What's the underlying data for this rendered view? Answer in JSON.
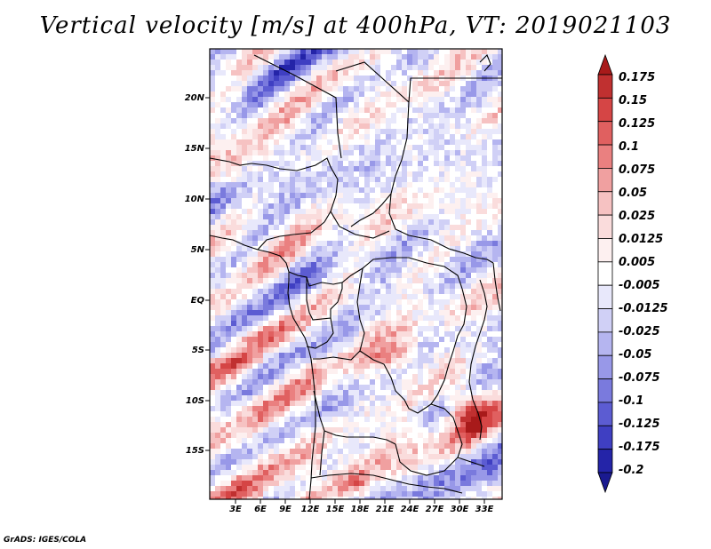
{
  "title": "Vertical velocity [m/s] at 400hPa, VT: 2019021103",
  "footer": "GrADS: IGES/COLA",
  "latitude_labels": [
    "20N",
    "15N",
    "10N",
    "5N",
    "EQ",
    "5S",
    "10S",
    "15S"
  ],
  "longitude_labels": [
    "3E",
    "6E",
    "9E",
    "12E",
    "15E",
    "18E",
    "21E",
    "24E",
    "27E",
    "30E",
    "33E"
  ],
  "colorbar": {
    "levels": [
      "0.175",
      "0.15",
      "0.125",
      "0.1",
      "0.075",
      "0.05",
      "0.025",
      "0.0125",
      "0.005",
      "-0.005",
      "-0.0125",
      "-0.025",
      "-0.05",
      "-0.075",
      "-0.1",
      "-0.125",
      "-0.175",
      "-0.2"
    ],
    "colors": [
      "#a81a1a",
      "#c03030",
      "#d54545",
      "#e06060",
      "#ea8080",
      "#f0a0a0",
      "#f6c2c2",
      "#fadcdc",
      "#fdf0f0",
      "#ffffff",
      "#e8e8fb",
      "#d0d0f6",
      "#b5b5f0",
      "#9898e8",
      "#7a7add",
      "#5c5cd2",
      "#3f3fc2",
      "#2424a8",
      "#1a1a90"
    ]
  },
  "chart_data": {
    "type": "heatmap",
    "title": "Vertical velocity [m/s] at 400hPa, VT: 2019021103",
    "variable": "Vertical velocity",
    "units": "m/s",
    "level": "400hPa",
    "valid_time": "2019021103",
    "lat_range": [
      -19.5,
      24.5
    ],
    "lon_range": [
      0,
      35
    ],
    "value_range": [
      -0.2,
      0.175
    ]
  }
}
